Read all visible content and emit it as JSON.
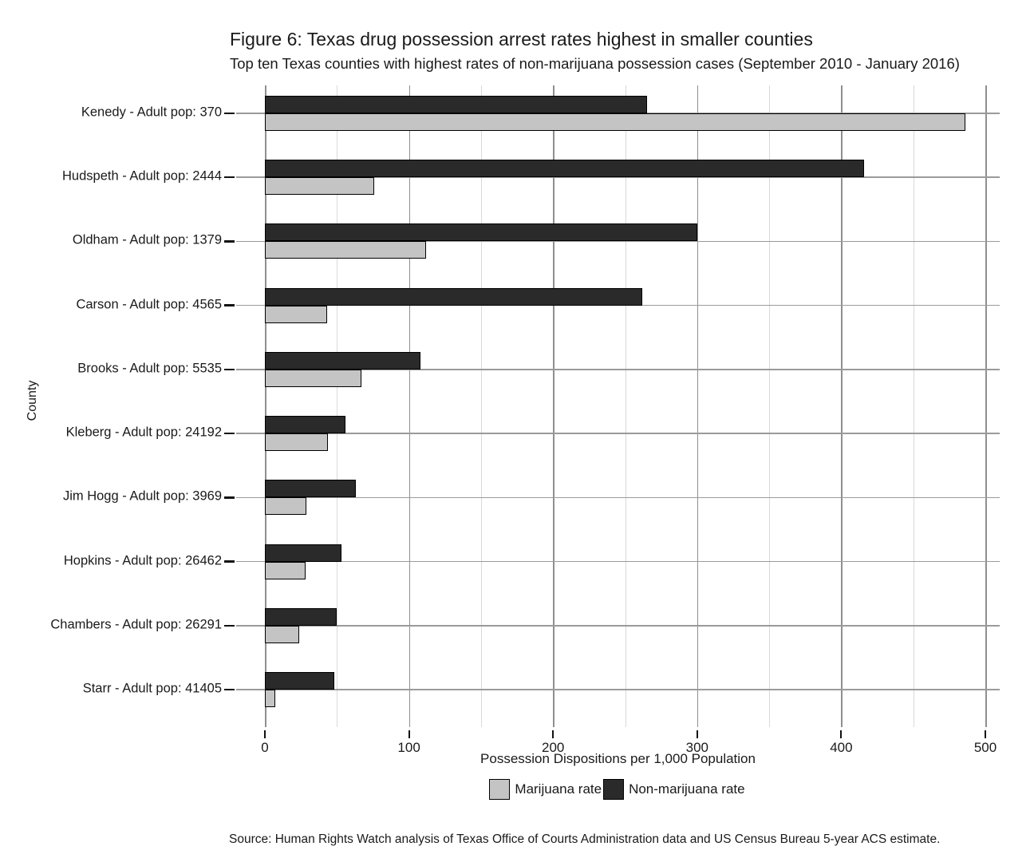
{
  "header": {
    "title": "Figure 6: Texas drug possession arrest rates highest in smaller counties",
    "subtitle": "Top ten Texas counties with highest rates of non-marijuana possession cases (September 2010 - January 2016)"
  },
  "colors": {
    "marijuana_bar": "#c4c4c4",
    "non_marijuana_bar": "#2a2a2a",
    "bar_border": "#000000",
    "grid_major": "#8f8f8f",
    "grid_minor": "#d9d9d9",
    "text": "#1a1a1a",
    "background": "#ffffff"
  },
  "chart_data": {
    "type": "bar",
    "orientation": "horizontal",
    "title": "Figure 6: Texas drug possession arrest rates highest in smaller counties",
    "subtitle": "Top ten Texas counties with highest rates of non-marijuana possession cases (September 2010 - January 2016)",
    "xlabel": "Possession Dispositions per 1,000 Population",
    "ylabel": "County",
    "xlim": [
      0,
      500
    ],
    "x_major_ticks": [
      0,
      100,
      200,
      300,
      400,
      500
    ],
    "x_minor_gridlines": [
      50,
      150,
      250,
      350,
      450
    ],
    "grid": "on",
    "legend_position": "bottom",
    "categories": [
      "Kenedy - Adult pop: 370",
      "Hudspeth - Adult pop: 2444",
      "Oldham - Adult pop: 1379",
      "Carson - Adult pop: 4565",
      "Brooks - Adult pop: 5535",
      "Kleberg - Adult pop: 24192",
      "Jim Hogg - Adult pop: 3969",
      "Hopkins - Adult pop: 26462",
      "Chambers - Adult pop: 26291",
      "Starr - Adult pop: 41405"
    ],
    "series": [
      {
        "name": "Marijuana rate",
        "color": "#c4c4c4",
        "values": [
          486,
          76,
          112,
          43,
          67,
          44,
          29,
          28,
          24,
          7
        ]
      },
      {
        "name": "Non-marijuana rate",
        "color": "#2a2a2a",
        "values": [
          265,
          416,
          300,
          262,
          108,
          56,
          63,
          53,
          50,
          48
        ]
      }
    ]
  },
  "legend": {
    "items": [
      {
        "label": "Marijuana rate",
        "color": "#c4c4c4"
      },
      {
        "label": "Non-marijuana rate",
        "color": "#2a2a2a"
      }
    ]
  },
  "footer": {
    "source": "Source: Human Rights Watch analysis of Texas Office of Courts Administration data and US Census Bureau 5-year ACS estimate."
  }
}
